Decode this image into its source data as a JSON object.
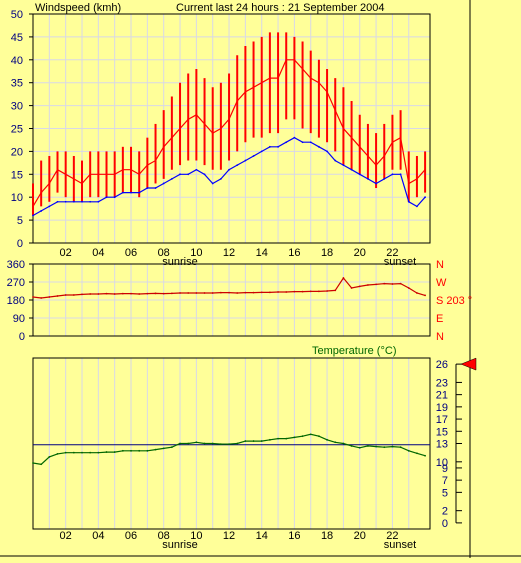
{
  "header": {
    "title": "Windspeed (kmh)",
    "subtitle": "Current last 24 hours : 21 September 2004"
  },
  "colors": {
    "background": "#ffff99",
    "gust": "#ff0000",
    "average": "#0000ff",
    "direction": "#cc0000",
    "temperature": "#006600",
    "reference": "#000080",
    "grid": "#d8d8e8",
    "axis_text": "#000080",
    "marker": "#ff0000"
  },
  "annotations": {
    "sunrise": "sunrise",
    "sunset": "sunset"
  },
  "chart_data": [
    {
      "type": "line",
      "name": "windspeed",
      "title": "Windspeed (kmh)",
      "xlabel": "",
      "ylabel": "",
      "xlim": [
        0,
        24.3
      ],
      "ylim": [
        0,
        50
      ],
      "x_ticks": [
        "02",
        "04",
        "06",
        "08",
        "10",
        "12",
        "14",
        "16",
        "18",
        "20",
        "22"
      ],
      "y_ticks": [
        "0",
        "5",
        "10",
        "15",
        "20",
        "25",
        "30",
        "35",
        "40",
        "45",
        "50"
      ],
      "grid": true,
      "x": [
        0,
        0.5,
        1,
        1.5,
        2,
        2.5,
        3,
        3.5,
        4,
        4.5,
        5,
        5.5,
        6,
        6.5,
        7,
        7.5,
        8,
        8.5,
        9,
        9.5,
        10,
        10.5,
        11,
        11.5,
        12,
        12.5,
        13,
        13.5,
        14,
        14.5,
        15,
        15.5,
        16,
        16.5,
        17,
        17.5,
        18,
        18.5,
        19,
        19.5,
        20,
        20.5,
        21,
        21.5,
        22,
        22.5,
        23,
        23.5,
        24
      ],
      "series": [
        {
          "values": [
            8,
            11,
            13,
            16,
            15,
            14,
            13,
            15,
            15,
            15,
            15,
            16,
            16,
            15,
            17,
            18,
            21,
            23,
            25,
            27,
            28,
            26,
            24,
            25,
            27,
            31,
            33,
            34,
            35,
            36,
            36,
            40,
            40,
            38,
            36,
            35,
            33,
            29,
            25,
            23,
            21,
            19,
            17,
            19,
            22,
            23,
            13,
            14,
            16
          ],
          "min": [
            6,
            8,
            9,
            11,
            10,
            9,
            9,
            10,
            10,
            10,
            10,
            11,
            11,
            10,
            12,
            13,
            14,
            16,
            17,
            18,
            18,
            17,
            16,
            16,
            18,
            20,
            22,
            23,
            23,
            24,
            24,
            27,
            27,
            25,
            24,
            23,
            22,
            20,
            17,
            16,
            15,
            14,
            12,
            14,
            16,
            16,
            9,
            10,
            11
          ],
          "max": [
            13,
            18,
            19,
            20,
            20,
            19,
            18,
            20,
            20,
            20,
            20,
            21,
            21,
            20,
            23,
            26,
            29,
            32,
            35,
            37,
            38,
            36,
            34,
            35,
            37,
            41,
            43,
            44,
            45,
            46,
            46,
            46,
            45,
            44,
            42,
            40,
            38,
            36,
            34,
            31,
            28,
            26,
            24,
            26,
            28,
            29,
            20,
            19,
            20
          ]
        },
        {
          "values": [
            6,
            7,
            8,
            9,
            9,
            9,
            9,
            9,
            9,
            10,
            10,
            11,
            11,
            11,
            12,
            12,
            13,
            14,
            15,
            15,
            16,
            15,
            13,
            14,
            16,
            17,
            18,
            19,
            20,
            21,
            21,
            22,
            23,
            22,
            22,
            21,
            20,
            18,
            17,
            16,
            15,
            14,
            13,
            14,
            15,
            15,
            9,
            8,
            10
          ]
        }
      ]
    },
    {
      "type": "line",
      "name": "direction",
      "xlabel": "",
      "ylabel": "",
      "xlim": [
        0,
        24.3
      ],
      "ylim": [
        0,
        360
      ],
      "y_ticks": [
        "0",
        "90",
        "180",
        "270",
        "360"
      ],
      "compass_labels": [
        "N",
        "W",
        "S",
        "E",
        "N"
      ],
      "current_label": "S 203 °",
      "grid": true,
      "x": [
        0,
        0.5,
        1,
        1.5,
        2,
        2.5,
        3,
        3.5,
        4,
        4.5,
        5,
        5.5,
        6,
        6.5,
        7,
        7.5,
        8,
        8.5,
        9,
        9.5,
        10,
        10.5,
        11,
        11.5,
        12,
        12.5,
        13,
        13.5,
        14,
        14.5,
        15,
        15.5,
        16,
        16.5,
        17,
        17.5,
        18,
        18.5,
        19,
        19.5,
        20,
        20.5,
        21,
        21.5,
        22,
        22.5,
        23,
        23.5,
        24
      ],
      "series": [
        {
          "values": [
            195,
            190,
            195,
            200,
            205,
            205,
            208,
            210,
            210,
            212,
            210,
            212,
            212,
            210,
            212,
            213,
            212,
            213,
            215,
            215,
            215,
            215,
            215,
            217,
            217,
            215,
            217,
            217,
            218,
            218,
            220,
            220,
            222,
            222,
            223,
            223,
            225,
            228,
            290,
            240,
            248,
            255,
            258,
            262,
            260,
            262,
            240,
            215,
            203
          ]
        }
      ]
    },
    {
      "type": "line",
      "name": "temperature",
      "title": "Temperature (°C)",
      "xlabel": "",
      "ylabel": "",
      "xlim": [
        0,
        24.3
      ],
      "ylim": [
        -1,
        27
      ],
      "x_ticks": [
        "02",
        "04",
        "06",
        "08",
        "10",
        "12",
        "14",
        "16",
        "18",
        "20",
        "22"
      ],
      "y_ticks": [
        "0",
        "2",
        "5",
        "7",
        "9",
        "10",
        "13",
        "15",
        "17",
        "19",
        "21",
        "23",
        "26"
      ],
      "reference_value": 12.8,
      "current_marker": 26,
      "grid": true,
      "x": [
        0,
        0.5,
        1,
        1.5,
        2,
        2.5,
        3,
        3.5,
        4,
        4.5,
        5,
        5.5,
        6,
        6.5,
        7,
        7.5,
        8,
        8.5,
        9,
        9.5,
        10,
        10.5,
        11,
        11.5,
        12,
        12.5,
        13,
        13.5,
        14,
        14.5,
        15,
        15.5,
        16,
        16.5,
        17,
        17.5,
        18,
        18.5,
        19,
        19.5,
        20,
        20.5,
        21,
        21.5,
        22,
        22.5,
        23,
        23.5,
        24
      ],
      "series": [
        {
          "values": [
            9.8,
            9.6,
            10.8,
            11.3,
            11.5,
            11.5,
            11.5,
            11.5,
            11.5,
            11.6,
            11.6,
            11.8,
            11.8,
            11.8,
            11.8,
            12.0,
            12.2,
            12.4,
            13.0,
            13.0,
            13.2,
            13.0,
            13.0,
            12.9,
            12.9,
            13.0,
            13.4,
            13.4,
            13.4,
            13.6,
            13.8,
            13.8,
            14.0,
            14.2,
            14.5,
            14.2,
            13.6,
            13.2,
            13.0,
            12.6,
            12.3,
            12.6,
            12.5,
            12.4,
            12.5,
            12.4,
            11.8,
            11.4,
            11.0
          ]
        }
      ]
    }
  ]
}
